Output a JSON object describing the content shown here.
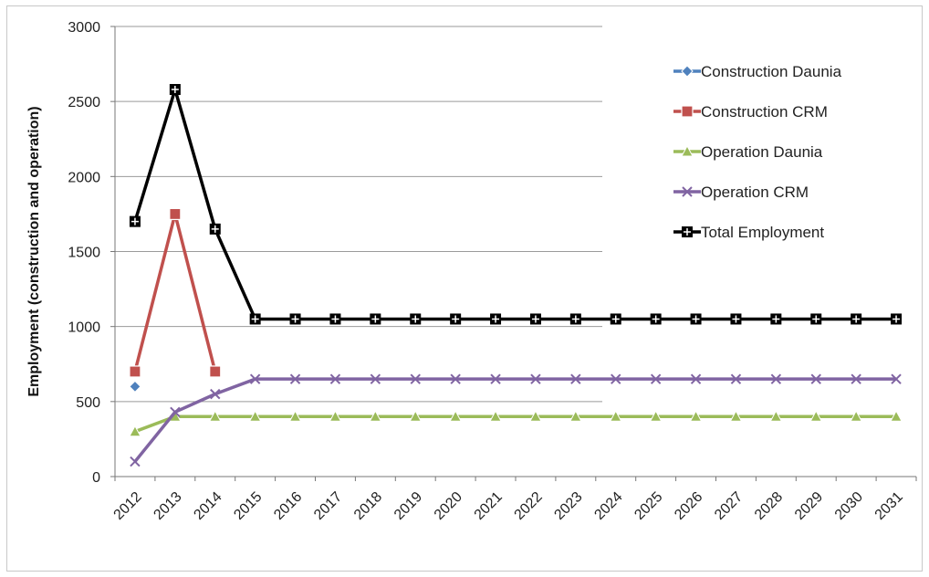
{
  "chart_data": {
    "type": "line",
    "title": "",
    "xlabel": "",
    "ylabel": "Employment (construction and operation)",
    "ylim": [
      0,
      3000
    ],
    "yticks": [
      0,
      500,
      1000,
      1500,
      2000,
      2500,
      3000
    ],
    "grid": "horizontal",
    "legend_position": "top-right",
    "categories": [
      "2012",
      "2013",
      "2014",
      "2015",
      "2016",
      "2017",
      "2018",
      "2019",
      "2020",
      "2021",
      "2022",
      "2023",
      "2024",
      "2025",
      "2026",
      "2027",
      "2028",
      "2029",
      "2030",
      "2031"
    ],
    "series": [
      {
        "name": "Construction Daunia",
        "color": "#4f81bd",
        "marker": "diamond",
        "values": [
          600,
          null,
          null,
          null,
          null,
          null,
          null,
          null,
          null,
          null,
          null,
          null,
          null,
          null,
          null,
          null,
          null,
          null,
          null,
          null
        ]
      },
      {
        "name": "Construction CRM",
        "color": "#c0504d",
        "marker": "square",
        "values": [
          700,
          1750,
          700,
          null,
          null,
          null,
          null,
          null,
          null,
          null,
          null,
          null,
          null,
          null,
          null,
          null,
          null,
          null,
          null,
          null
        ]
      },
      {
        "name": "Operation Daunia",
        "color": "#9bbb59",
        "marker": "triangle",
        "values": [
          300,
          400,
          400,
          400,
          400,
          400,
          400,
          400,
          400,
          400,
          400,
          400,
          400,
          400,
          400,
          400,
          400,
          400,
          400,
          400
        ]
      },
      {
        "name": "Operation CRM",
        "color": "#8064a2",
        "marker": "x",
        "values": [
          100,
          430,
          550,
          650,
          650,
          650,
          650,
          650,
          650,
          650,
          650,
          650,
          650,
          650,
          650,
          650,
          650,
          650,
          650,
          650
        ]
      },
      {
        "name": "Total Employment",
        "color": "#000000",
        "marker": "square-cross",
        "values": [
          1700,
          2580,
          1650,
          1050,
          1050,
          1050,
          1050,
          1050,
          1050,
          1050,
          1050,
          1050,
          1050,
          1050,
          1050,
          1050,
          1050,
          1050,
          1050,
          1050
        ]
      }
    ]
  }
}
